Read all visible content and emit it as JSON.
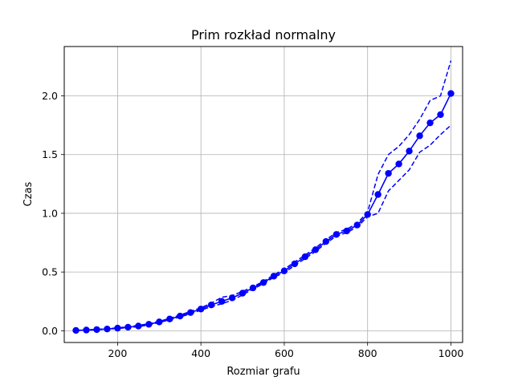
{
  "chart_data": {
    "type": "line",
    "title": "Prim rozkład normalny",
    "xlabel": "Rozmiar grafu",
    "ylabel": "Czas",
    "xlim": [
      72,
      1028
    ],
    "ylim": [
      -0.1,
      2.42
    ],
    "xticks": [
      200,
      400,
      600,
      800,
      1000
    ],
    "yticks": [
      0.0,
      0.5,
      1.0,
      1.5,
      2.0
    ],
    "xtick_labels": [
      "200",
      "400",
      "600",
      "800",
      "1000"
    ],
    "ytick_labels": [
      "0.0",
      "0.5",
      "1.0",
      "1.5",
      "2.0"
    ],
    "grid": true,
    "legend": "none",
    "color": "#0000ff",
    "x": [
      100,
      125,
      150,
      175,
      200,
      225,
      250,
      275,
      300,
      325,
      350,
      375,
      400,
      425,
      450,
      475,
      500,
      525,
      550,
      575,
      600,
      625,
      650,
      675,
      700,
      725,
      750,
      775,
      800,
      825,
      850,
      875,
      900,
      925,
      950,
      975,
      1000
    ],
    "series": [
      {
        "style": "solid-markers",
        "values": [
          0.003,
          0.006,
          0.01,
          0.015,
          0.022,
          0.03,
          0.04,
          0.055,
          0.075,
          0.1,
          0.125,
          0.155,
          0.185,
          0.22,
          0.25,
          0.28,
          0.32,
          0.365,
          0.41,
          0.465,
          0.51,
          0.57,
          0.63,
          0.69,
          0.76,
          0.82,
          0.85,
          0.9,
          0.99,
          1.16,
          1.34,
          1.42,
          1.53,
          1.66,
          1.77,
          1.84,
          2.02
        ]
      },
      {
        "style": "dashed",
        "values": [
          0.004,
          0.007,
          0.012,
          0.017,
          0.025,
          0.034,
          0.045,
          0.06,
          0.08,
          0.106,
          0.133,
          0.165,
          0.195,
          0.235,
          0.285,
          0.3,
          0.335,
          0.375,
          0.42,
          0.475,
          0.525,
          0.585,
          0.645,
          0.705,
          0.775,
          0.835,
          0.865,
          0.915,
          1.01,
          1.33,
          1.5,
          1.57,
          1.67,
          1.8,
          1.96,
          2.0,
          2.3
        ]
      },
      {
        "style": "dashed",
        "values": [
          0.002,
          0.005,
          0.008,
          0.013,
          0.019,
          0.026,
          0.035,
          0.05,
          0.07,
          0.094,
          0.117,
          0.145,
          0.175,
          0.205,
          0.23,
          0.26,
          0.305,
          0.355,
          0.4,
          0.455,
          0.495,
          0.555,
          0.615,
          0.675,
          0.745,
          0.805,
          0.835,
          0.885,
          0.97,
          1.0,
          1.19,
          1.28,
          1.37,
          1.52,
          1.58,
          1.67,
          1.75
        ]
      }
    ]
  }
}
